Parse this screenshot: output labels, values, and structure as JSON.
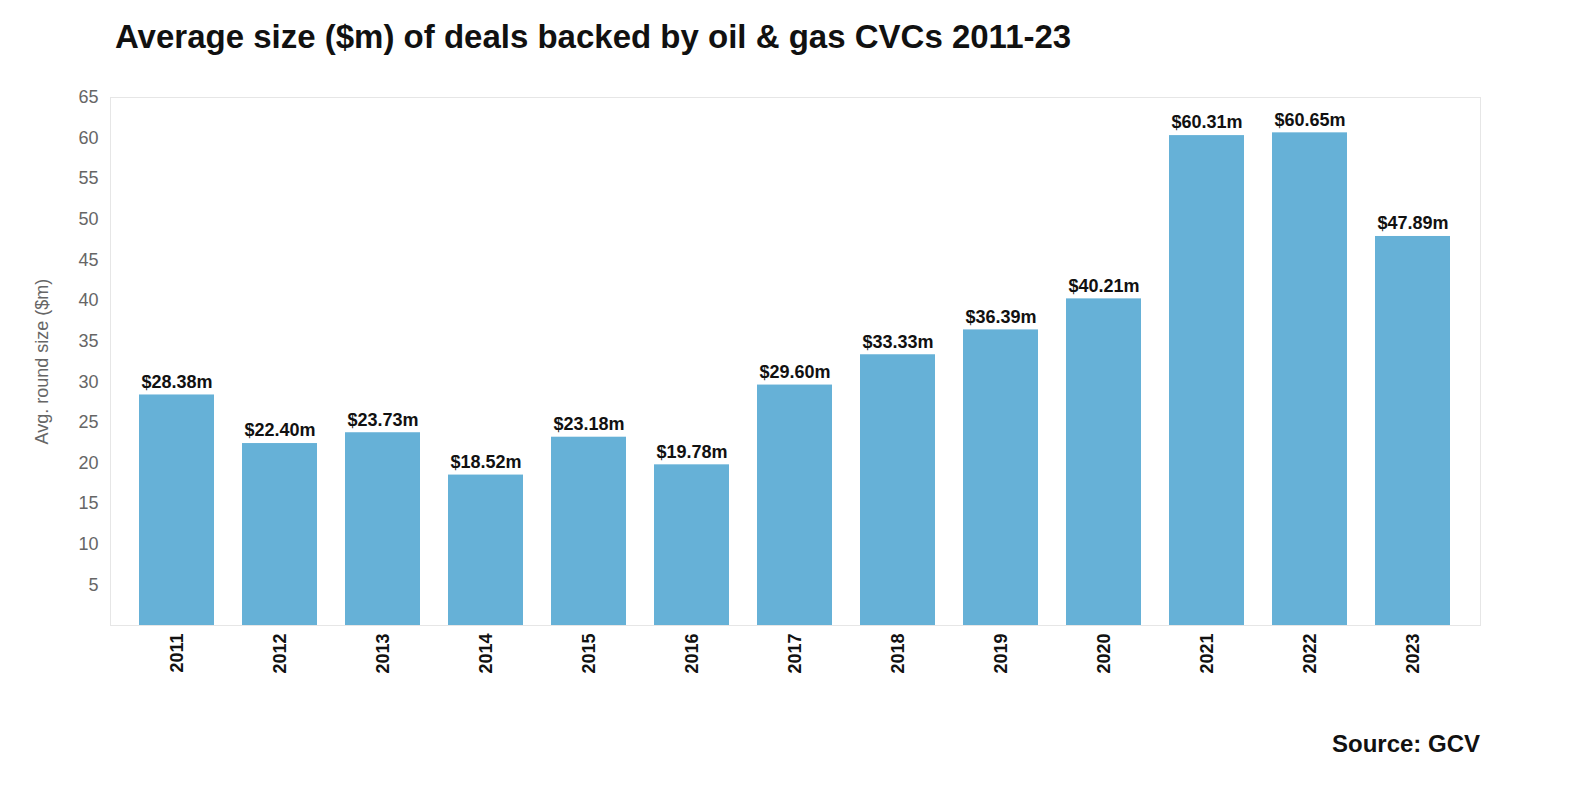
{
  "chart_data": {
    "type": "bar",
    "title": "Average size ($m) of deals backed by oil & gas CVCs 2011-23",
    "caption": "Source: GCV",
    "y_label": "Avg. round size ($m)",
    "categories": [
      "2011",
      "2012",
      "2013",
      "2014",
      "2015",
      "2016",
      "2017",
      "2018",
      "2019",
      "2020",
      "2021",
      "2022",
      "2023"
    ],
    "values": [
      28.38,
      22.4,
      23.73,
      18.52,
      23.18,
      19.78,
      29.6,
      33.33,
      36.39,
      40.21,
      60.31,
      60.65,
      47.89
    ],
    "value_labels": [
      "$28.38m",
      "$22.40m",
      "$23.73m",
      "$18.52m",
      "$23.18m",
      "$19.78m",
      "$29.60m",
      "$33.33m",
      "$36.39m",
      "$40.21m",
      "$60.31m",
      "$60.65m",
      "$47.89m"
    ],
    "color": "#66b1d7",
    "ylim": [
      0,
      65
    ],
    "yticks": [
      5,
      10,
      15,
      20,
      25,
      30,
      35,
      40,
      45,
      50,
      55,
      60,
      65
    ],
    "grid": false,
    "data_labels": true
  }
}
